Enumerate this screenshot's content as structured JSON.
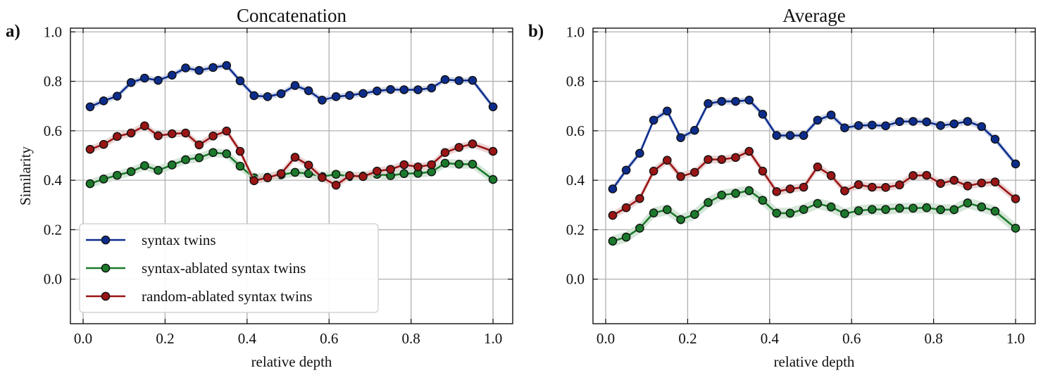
{
  "chart_data": [
    {
      "panel_label": "a)",
      "type": "line",
      "title": "Concatenation",
      "xlabel": "relative depth",
      "ylabel": "Similarity",
      "xlim": [
        -0.031,
        1.048
      ],
      "ylim": [
        -0.18,
        1.015
      ],
      "xticks": [
        0.0,
        0.2,
        0.4,
        0.6,
        0.8,
        1.0
      ],
      "xtick_labels": [
        "0.0",
        "0.2",
        "0.4",
        "0.6",
        "0.8",
        "1.0"
      ],
      "yticks": [
        0.0,
        0.2,
        0.4,
        0.6,
        0.8,
        1.0
      ],
      "ytick_labels": [
        "0.0",
        "0.2",
        "0.4",
        "0.6",
        "0.8",
        "1.0"
      ],
      "grid": true,
      "legend": {
        "placement": "lower-left",
        "entries": [
          "syntax twins",
          "syntax-ablated syntax twins",
          "random-ablated syntax twins"
        ]
      },
      "x": [
        0.017,
        0.05,
        0.083,
        0.117,
        0.15,
        0.183,
        0.217,
        0.25,
        0.283,
        0.317,
        0.35,
        0.383,
        0.417,
        0.45,
        0.483,
        0.517,
        0.55,
        0.583,
        0.617,
        0.65,
        0.683,
        0.717,
        0.75,
        0.783,
        0.817,
        0.85,
        0.883,
        0.917,
        0.95,
        1.0
      ],
      "series": [
        {
          "name": "syntax twins",
          "color": "#0d2d8c",
          "band": 0.012,
          "values": [
            0.697,
            0.721,
            0.74,
            0.795,
            0.813,
            0.804,
            0.825,
            0.854,
            0.844,
            0.856,
            0.864,
            0.802,
            0.742,
            0.738,
            0.75,
            0.783,
            0.762,
            0.724,
            0.738,
            0.743,
            0.751,
            0.761,
            0.767,
            0.766,
            0.766,
            0.773,
            0.807,
            0.803,
            0.804,
            0.697
          ]
        },
        {
          "name": "syntax-ablated syntax twins",
          "color": "#1b7a2b",
          "band": 0.018,
          "values": [
            0.386,
            0.405,
            0.42,
            0.435,
            0.459,
            0.44,
            0.462,
            0.483,
            0.491,
            0.512,
            0.507,
            0.457,
            0.41,
            0.412,
            0.422,
            0.432,
            0.427,
            0.415,
            0.424,
            0.415,
            0.417,
            0.424,
            0.419,
            0.427,
            0.428,
            0.434,
            0.469,
            0.465,
            0.465,
            0.403
          ]
        },
        {
          "name": "random-ablated syntax twins",
          "color": "#9a1515",
          "band": 0.015,
          "values": [
            0.525,
            0.545,
            0.577,
            0.591,
            0.62,
            0.58,
            0.588,
            0.591,
            0.543,
            0.579,
            0.599,
            0.517,
            0.398,
            0.41,
            0.427,
            0.493,
            0.461,
            0.411,
            0.38,
            0.419,
            0.415,
            0.437,
            0.444,
            0.463,
            0.454,
            0.463,
            0.512,
            0.533,
            0.547,
            0.517
          ]
        }
      ]
    },
    {
      "panel_label": "b)",
      "type": "line",
      "title": "Average",
      "xlabel": "relative depth",
      "ylabel": "",
      "xlim": [
        -0.031,
        1.048
      ],
      "ylim": [
        -0.18,
        1.015
      ],
      "xticks": [
        0.0,
        0.2,
        0.4,
        0.6,
        0.8,
        1.0
      ],
      "xtick_labels": [
        "0.0",
        "0.2",
        "0.4",
        "0.6",
        "0.8",
        "1.0"
      ],
      "yticks": [
        0.0,
        0.2,
        0.4,
        0.6,
        0.8,
        1.0
      ],
      "ytick_labels": [
        "0.0",
        "0.2",
        "0.4",
        "0.6",
        "0.8",
        "1.0"
      ],
      "grid": true,
      "x": [
        0.017,
        0.05,
        0.083,
        0.117,
        0.15,
        0.183,
        0.217,
        0.25,
        0.283,
        0.317,
        0.35,
        0.383,
        0.417,
        0.45,
        0.483,
        0.517,
        0.55,
        0.583,
        0.617,
        0.65,
        0.683,
        0.717,
        0.75,
        0.783,
        0.817,
        0.85,
        0.883,
        0.917,
        0.95,
        1.0
      ],
      "series": [
        {
          "name": "syntax twins",
          "color": "#0d2d8c",
          "band": 0.013,
          "values": [
            0.365,
            0.441,
            0.509,
            0.643,
            0.68,
            0.572,
            0.602,
            0.71,
            0.719,
            0.719,
            0.724,
            0.667,
            0.581,
            0.581,
            0.581,
            0.643,
            0.664,
            0.612,
            0.621,
            0.623,
            0.62,
            0.637,
            0.638,
            0.636,
            0.621,
            0.628,
            0.638,
            0.617,
            0.566,
            0.466
          ]
        },
        {
          "name": "syntax-ablated syntax twins",
          "color": "#1b7a2b",
          "band": 0.022,
          "values": [
            0.154,
            0.17,
            0.206,
            0.268,
            0.281,
            0.241,
            0.262,
            0.31,
            0.34,
            0.347,
            0.358,
            0.319,
            0.267,
            0.267,
            0.282,
            0.306,
            0.292,
            0.265,
            0.277,
            0.282,
            0.282,
            0.287,
            0.287,
            0.289,
            0.281,
            0.281,
            0.308,
            0.292,
            0.275,
            0.206
          ]
        },
        {
          "name": "random-ablated syntax twins",
          "color": "#9a1515",
          "band": 0.016,
          "values": [
            0.258,
            0.289,
            0.326,
            0.437,
            0.481,
            0.415,
            0.432,
            0.484,
            0.484,
            0.492,
            0.517,
            0.437,
            0.354,
            0.365,
            0.372,
            0.454,
            0.419,
            0.357,
            0.382,
            0.372,
            0.371,
            0.381,
            0.419,
            0.42,
            0.387,
            0.4,
            0.377,
            0.389,
            0.393,
            0.325
          ]
        }
      ]
    }
  ]
}
